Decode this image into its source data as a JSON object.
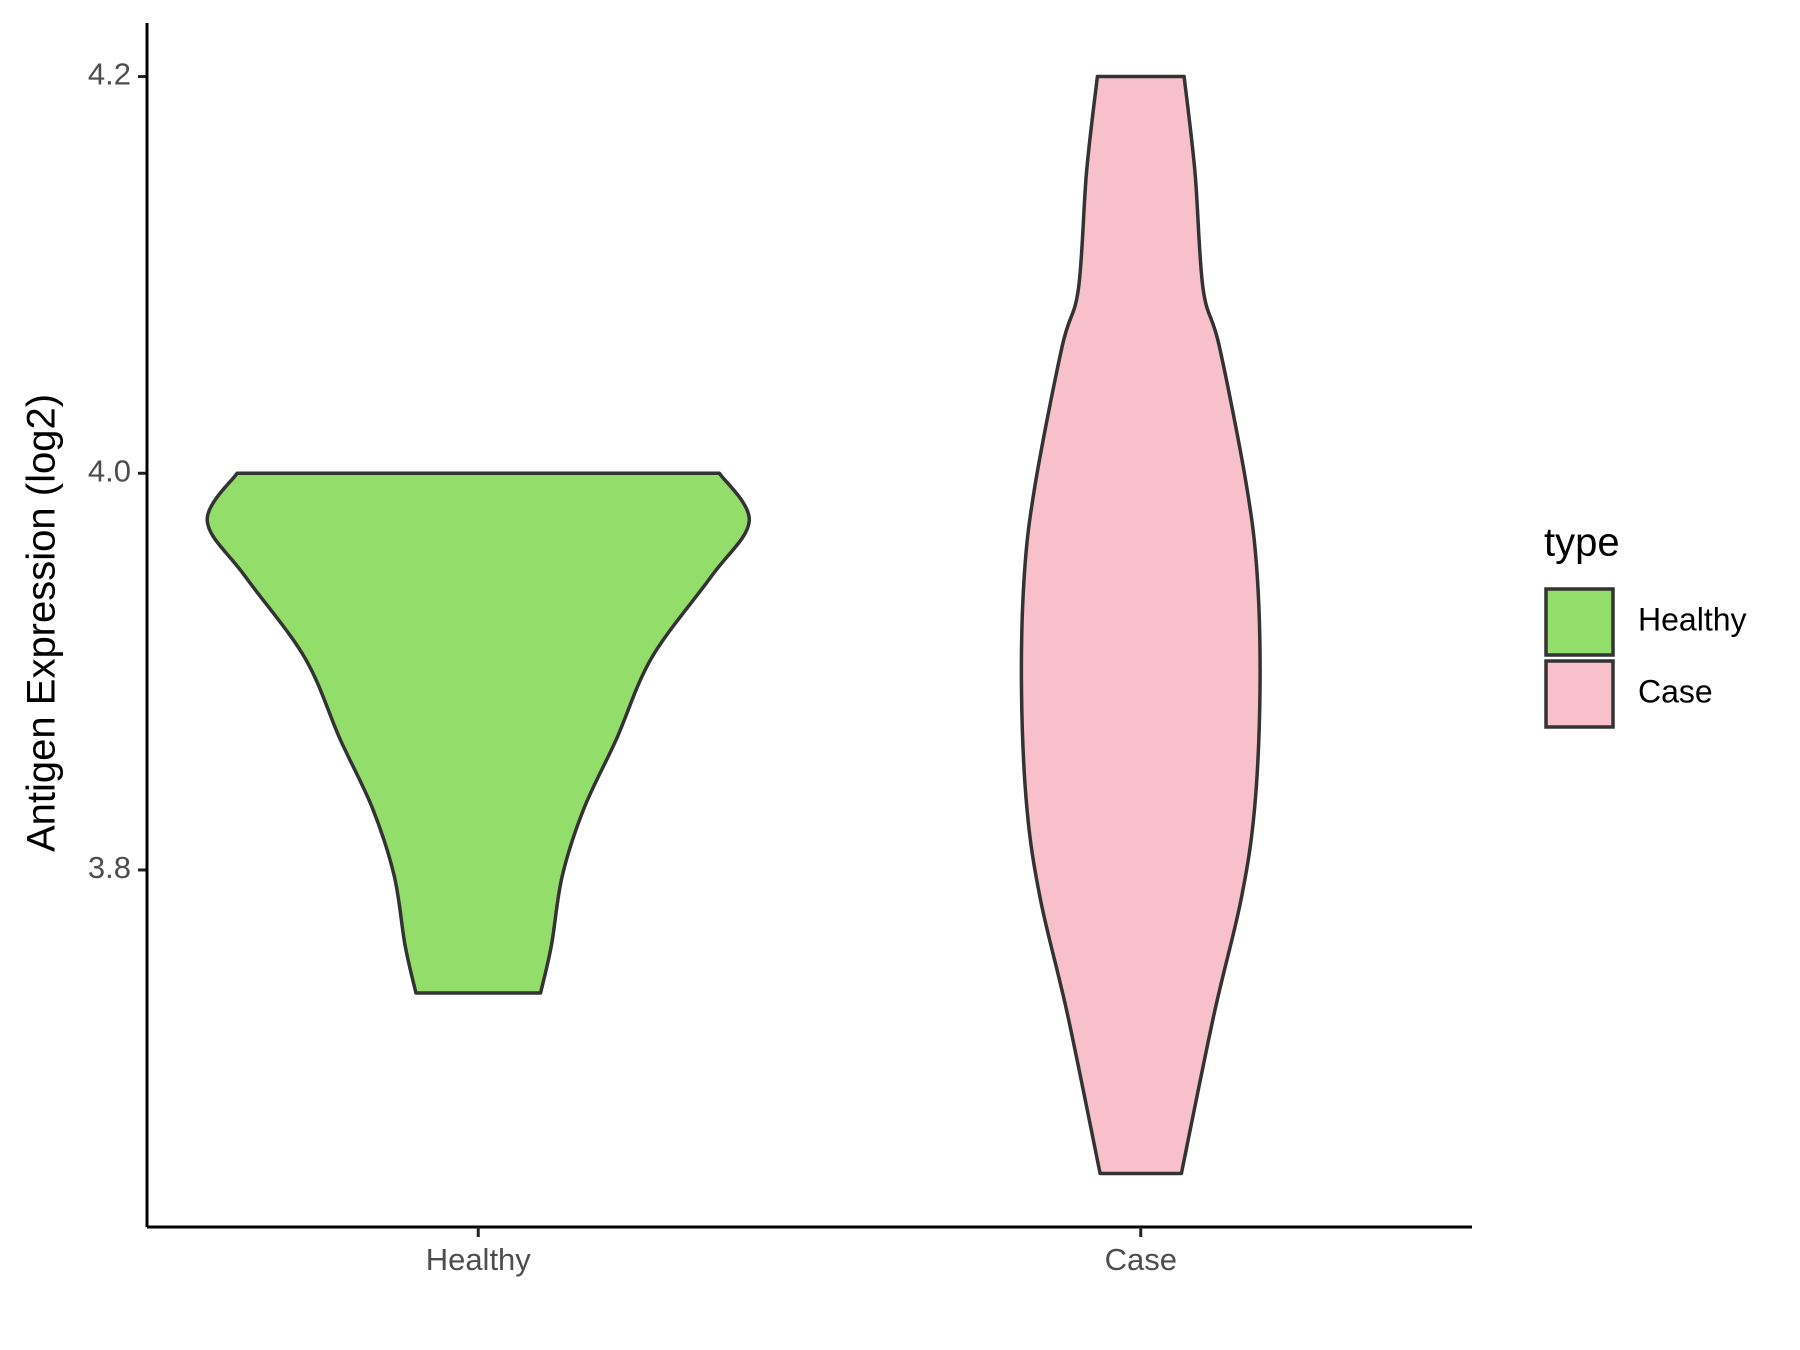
{
  "chart_data": {
    "type": "violin",
    "y_label": "Antigen Expression (log2)",
    "categories": [
      "Healthy",
      "Case"
    ],
    "ylim": [
      3.62,
      4.227
    ],
    "yticks": [
      3.8,
      {
        "value": 4.0,
        "label": "4.0"
      },
      4.2
    ],
    "legend_title": "type",
    "legend_position": "right",
    "series": [
      {
        "name": "Healthy",
        "color": "#93dd6a",
        "y": [
          4.0,
          3.976,
          3.948,
          3.907,
          3.866,
          3.831,
          3.797,
          3.762,
          3.738
        ],
        "density": [
          0.89,
          1.0,
          0.86,
          0.64,
          0.51,
          0.39,
          0.31,
          0.27,
          0.23
        ]
      },
      {
        "name": "Case",
        "color": "#f7c0cb",
        "y": [
          4.2,
          4.152,
          4.093,
          4.064,
          3.994,
          3.948,
          3.89,
          3.831,
          3.785,
          3.727,
          3.647
        ],
        "density": [
          0.16,
          0.2,
          0.23,
          0.29,
          0.39,
          0.43,
          0.44,
          0.42,
          0.37,
          0.27,
          0.15
        ]
      }
    ]
  }
}
